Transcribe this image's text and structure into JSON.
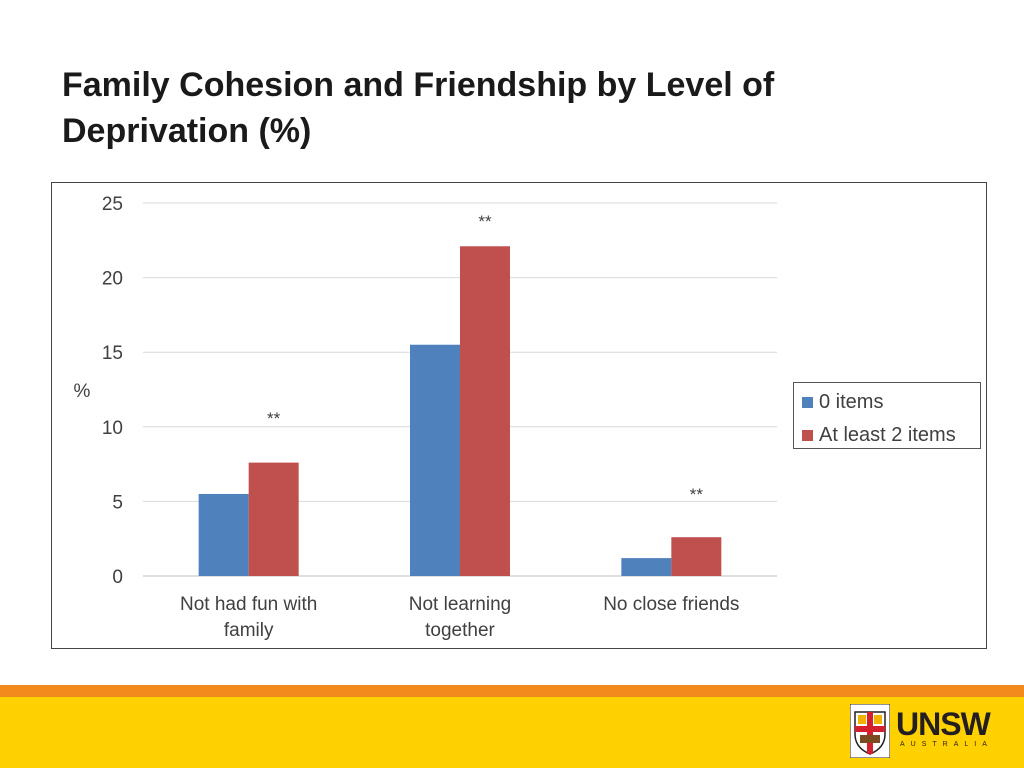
{
  "slide": {
    "title": "Family Cohesion and Friendship by Level of Deprivation (%)"
  },
  "chart_data": {
    "type": "bar",
    "title": "",
    "ylabel": "%",
    "xlabel": "",
    "ylim": [
      0,
      25
    ],
    "yticks": [
      0,
      5,
      10,
      15,
      20,
      25
    ],
    "grid": true,
    "legend_position": "right",
    "categories": [
      "Not had fun with family",
      "Not learning together",
      "No close friends"
    ],
    "category_lines": [
      [
        "Not had fun with",
        "family"
      ],
      [
        "Not learning",
        "together"
      ],
      [
        "No close friends"
      ]
    ],
    "series": [
      {
        "name": "0 items",
        "color": "#4f81bd",
        "values": [
          5.5,
          15.5,
          1.2
        ]
      },
      {
        "name": "At least 2 items",
        "color": "#c0504d",
        "values": [
          7.6,
          22.1,
          2.6
        ]
      }
    ],
    "annotations": [
      "**",
      "**",
      "**"
    ],
    "annotation_offsets": [
      2.6,
      1.3,
      2.5
    ]
  },
  "footer": {
    "logo_name": "UNSW",
    "logo_sub": "AUSTRALIA",
    "orange": "#f28a1e",
    "yellow": "#ffd100"
  }
}
